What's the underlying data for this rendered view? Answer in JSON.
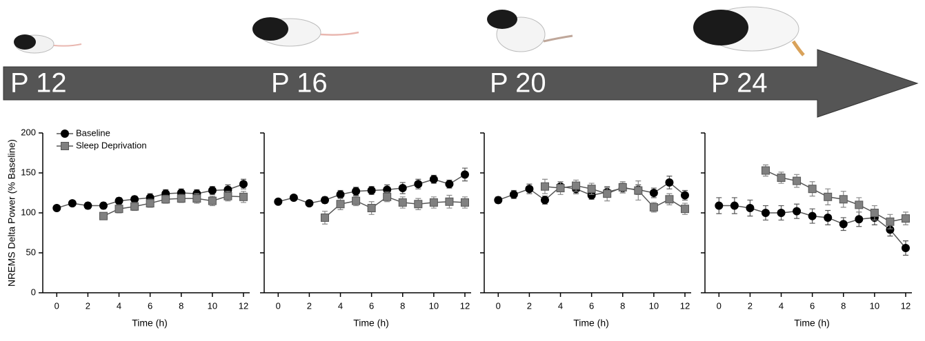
{
  "stages": [
    "P 12",
    "P 16",
    "P 20",
    "P 24"
  ],
  "chart_data": [
    {
      "type": "line",
      "ylabel": "NREMS Delta Power (% Baseline)",
      "xlabel": "Time (h)",
      "x": [
        0,
        1,
        2,
        3,
        4,
        5,
        6,
        7,
        8,
        9,
        10,
        11,
        12
      ],
      "xlim": [
        -0.9,
        12.4
      ],
      "xticks": [
        0,
        2,
        4,
        6,
        8,
        10,
        12
      ],
      "ylim": [
        0,
        200
      ],
      "yticks": [
        0,
        50,
        100,
        150,
        200
      ],
      "series": [
        {
          "name": "Baseline",
          "color": "#000000",
          "marker": "circle",
          "values": [
            106,
            112,
            109,
            109,
            115,
            117,
            119,
            124,
            125,
            124,
            128,
            129,
            136
          ],
          "errors": [
            3,
            3,
            4,
            4,
            4,
            4,
            5,
            5,
            5,
            5,
            5,
            6,
            6
          ]
        },
        {
          "name": "Sleep Deprivation",
          "color": "#808080",
          "marker": "square",
          "values": [
            null,
            null,
            null,
            96,
            105,
            108,
            112,
            117,
            118,
            118,
            115,
            121,
            120
          ],
          "errors": [
            null,
            null,
            null,
            4,
            5,
            5,
            5,
            5,
            5,
            6,
            6,
            6,
            7
          ]
        }
      ]
    },
    {
      "type": "line",
      "xlabel": "Time (h)",
      "x": [
        0,
        1,
        2,
        3,
        4,
        5,
        6,
        7,
        8,
        9,
        10,
        11,
        12
      ],
      "xlim": [
        -0.9,
        12.4
      ],
      "xticks": [
        0,
        2,
        4,
        6,
        8,
        10,
        12
      ],
      "ylim": [
        0,
        200
      ],
      "series": [
        {
          "color": "#000000",
          "marker": "circle",
          "values": [
            114,
            119,
            112,
            116,
            123,
            127,
            128,
            129,
            131,
            136,
            142,
            136,
            148
          ],
          "errors": [
            3,
            3,
            3,
            4,
            5,
            5,
            5,
            6,
            7,
            6,
            5,
            5,
            8
          ]
        },
        {
          "color": "#808080",
          "marker": "square",
          "values": [
            null,
            null,
            null,
            94,
            111,
            115,
            106,
            120,
            113,
            111,
            113,
            114,
            113
          ],
          "errors": [
            null,
            null,
            null,
            8,
            7,
            6,
            8,
            6,
            7,
            7,
            7,
            8,
            7
          ]
        }
      ]
    },
    {
      "type": "line",
      "xlabel": "Time (h)",
      "x": [
        0,
        1,
        2,
        3,
        4,
        5,
        6,
        7,
        8,
        9,
        10,
        11,
        12
      ],
      "xlim": [
        -0.9,
        12.4
      ],
      "xticks": [
        0,
        2,
        4,
        6,
        8,
        10,
        12
      ],
      "ylim": [
        0,
        200
      ],
      "series": [
        {
          "color": "#000000",
          "marker": "circle",
          "values": [
            116,
            123,
            130,
            116,
            133,
            130,
            122,
            126,
            131,
            129,
            125,
            138,
            122
          ],
          "errors": [
            4,
            5,
            6,
            5,
            6,
            6,
            5,
            6,
            6,
            6,
            6,
            8,
            6
          ]
        },
        {
          "color": "#808080",
          "marker": "square",
          "values": [
            null,
            null,
            null,
            133,
            131,
            134,
            130,
            124,
            132,
            128,
            107,
            117,
            105
          ],
          "errors": [
            null,
            null,
            null,
            9,
            8,
            7,
            7,
            9,
            7,
            12,
            6,
            7,
            7
          ]
        }
      ]
    },
    {
      "type": "line",
      "xlabel": "Time (h)",
      "x": [
        0,
        1,
        2,
        3,
        4,
        5,
        6,
        7,
        8,
        9,
        10,
        11,
        12
      ],
      "xlim": [
        -0.9,
        12.4
      ],
      "xticks": [
        0,
        2,
        4,
        6,
        8,
        10,
        12
      ],
      "ylim": [
        0,
        200
      ],
      "series": [
        {
          "color": "#000000",
          "marker": "circle",
          "values": [
            109,
            109,
            106,
            100,
            100,
            102,
            96,
            94,
            86,
            92,
            94,
            79,
            56
          ],
          "errors": [
            10,
            10,
            10,
            9,
            9,
            9,
            9,
            9,
            8,
            9,
            9,
            8,
            9
          ]
        },
        {
          "color": "#808080",
          "marker": "square",
          "values": [
            null,
            null,
            null,
            153,
            144,
            140,
            130,
            120,
            117,
            110,
            100,
            89,
            93
          ],
          "errors": [
            null,
            null,
            null,
            7,
            7,
            8,
            9,
            10,
            10,
            9,
            9,
            9,
            8
          ]
        }
      ]
    }
  ]
}
